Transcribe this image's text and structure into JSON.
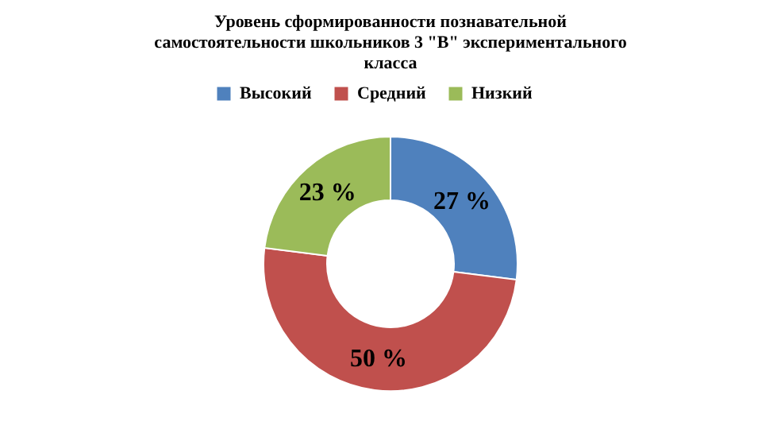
{
  "chart_data": {
    "type": "donut",
    "title": "Уровень сформированности познавательной самостоятельности школьников 3 \"В\" экспериментального класса",
    "categories": [
      "Высокий",
      "Средний",
      "Низкий"
    ],
    "values": [
      27,
      50,
      23
    ],
    "colors": [
      "#4f81bd",
      "#c0504d",
      "#9bbb59"
    ],
    "value_labels": [
      "27 %",
      "50 %",
      "23 %"
    ],
    "legend": "top"
  }
}
